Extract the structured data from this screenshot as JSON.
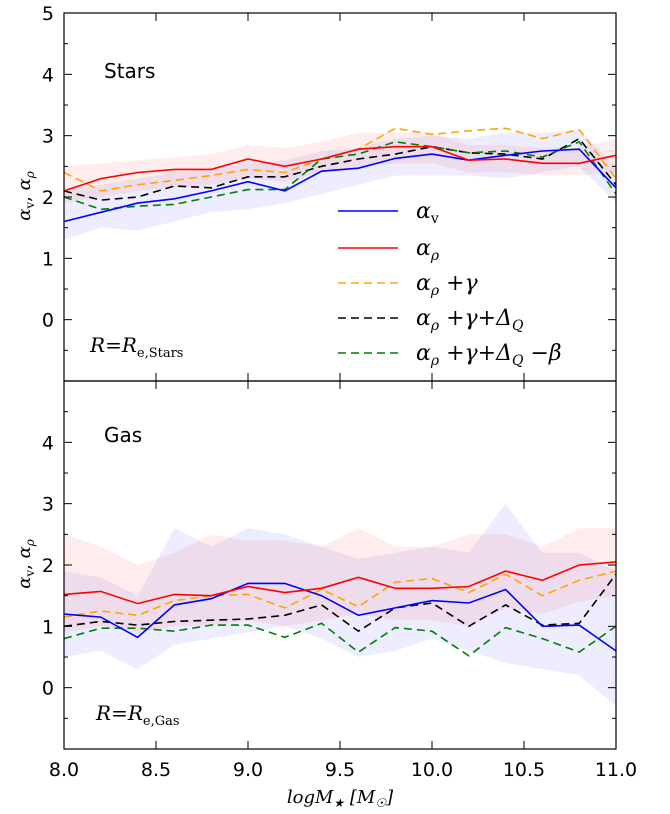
{
  "figure": {
    "xlabel": "logM★ [M☉]",
    "ylabel": "αv, αρ"
  },
  "chart_data": [
    {
      "type": "line",
      "panel": "top",
      "title": "Stars",
      "annotation": "R=Re,Stars",
      "xlabel": "logM★ [M☉]",
      "ylabel": "αv, αρ",
      "xlim": [
        8.0,
        11.0
      ],
      "ylim": [
        -1,
        5
      ],
      "x_ticks": [
        "8.0",
        "8.5",
        "9.0",
        "9.5",
        "10.0",
        "10.5",
        "11.0"
      ],
      "y_ticks": [
        "0",
        "1",
        "2",
        "3",
        "4",
        "5"
      ],
      "x": [
        8.0,
        8.2,
        8.4,
        8.6,
        8.8,
        9.0,
        9.2,
        9.4,
        9.6,
        9.8,
        10.0,
        10.2,
        10.4,
        10.6,
        10.8,
        11.0
      ],
      "series": [
        {
          "name": "αv",
          "color": "#0000ff",
          "dash": "solid",
          "values": [
            1.6,
            1.75,
            1.9,
            1.97,
            2.1,
            2.25,
            2.1,
            2.42,
            2.47,
            2.63,
            2.7,
            2.6,
            2.68,
            2.75,
            2.78,
            2.15
          ]
        },
        {
          "name": "αρ",
          "color": "#ff0000",
          "dash": "solid",
          "values": [
            2.1,
            2.3,
            2.4,
            2.45,
            2.45,
            2.62,
            2.5,
            2.62,
            2.78,
            2.82,
            2.82,
            2.6,
            2.62,
            2.55,
            2.55,
            2.68
          ]
        },
        {
          "name": "αρ +γ",
          "color": "#ffa500",
          "dash": "dashed",
          "values": [
            2.4,
            2.1,
            2.2,
            2.27,
            2.35,
            2.45,
            2.4,
            2.62,
            2.78,
            3.12,
            3.02,
            3.08,
            3.12,
            2.95,
            3.1,
            2.3
          ]
        },
        {
          "name": "αρ +γ+ΔQ",
          "color": "#000000",
          "dash": "dashed",
          "values": [
            2.1,
            1.95,
            2.0,
            2.18,
            2.15,
            2.33,
            2.33,
            2.5,
            2.62,
            2.7,
            2.82,
            2.72,
            2.7,
            2.62,
            2.95,
            2.2
          ]
        },
        {
          "name": "αρ +γ+ΔQ −β",
          "color": "#008000",
          "dash": "dashed",
          "values": [
            2.0,
            1.8,
            1.85,
            1.88,
            2.0,
            2.12,
            2.12,
            2.62,
            2.7,
            2.9,
            2.82,
            2.72,
            2.75,
            2.65,
            2.9,
            2.05
          ]
        }
      ],
      "bands": [
        {
          "series": "αv",
          "color": "#0000ff",
          "lower": [
            1.3,
            1.5,
            1.45,
            1.6,
            1.75,
            1.8,
            1.9,
            2.05,
            2.2,
            2.35,
            2.35,
            2.35,
            2.3,
            2.4,
            2.5,
            1.9
          ],
          "upper": [
            2.1,
            2.2,
            2.3,
            2.4,
            2.45,
            2.55,
            2.6,
            2.75,
            2.8,
            2.95,
            3.0,
            2.95,
            3.05,
            3.05,
            3.1,
            2.5
          ]
        },
        {
          "series": "αρ",
          "color": "#ff0000",
          "lower": [
            1.9,
            2.0,
            2.1,
            2.15,
            2.2,
            2.3,
            2.25,
            2.4,
            2.5,
            2.55,
            2.55,
            2.4,
            2.4,
            2.35,
            2.35,
            2.4
          ],
          "upper": [
            2.5,
            2.55,
            2.6,
            2.65,
            2.7,
            2.85,
            2.8,
            2.9,
            3.05,
            3.05,
            3.05,
            2.85,
            2.85,
            2.8,
            2.8,
            2.95
          ]
        }
      ],
      "legend": {
        "placement": "center-right",
        "entries": [
          "αv",
          "αρ",
          "αρ +γ",
          "αρ +γ+ΔQ",
          "αρ +γ+ΔQ −β"
        ]
      }
    },
    {
      "type": "line",
      "panel": "bottom",
      "title": "Gas",
      "annotation": "R=Re,Gas",
      "xlabel": "logM★ [M☉]",
      "ylabel": "αv, αρ",
      "xlim": [
        8.0,
        11.0
      ],
      "ylim": [
        -1,
        5
      ],
      "x_ticks": [
        "8.0",
        "8.5",
        "9.0",
        "9.5",
        "10.0",
        "10.5",
        "11.0"
      ],
      "y_ticks": [
        "0",
        "1",
        "2",
        "3",
        "4"
      ],
      "x": [
        8.0,
        8.2,
        8.4,
        8.6,
        8.8,
        9.0,
        9.2,
        9.4,
        9.6,
        9.8,
        10.0,
        10.2,
        10.4,
        10.6,
        10.8,
        11.0
      ],
      "series": [
        {
          "name": "αv",
          "color": "#0000ff",
          "dash": "solid",
          "values": [
            1.2,
            1.15,
            0.82,
            1.35,
            1.45,
            1.7,
            1.7,
            1.5,
            1.18,
            1.3,
            1.42,
            1.38,
            1.6,
            1.0,
            1.02,
            0.6
          ]
        },
        {
          "name": "αρ",
          "color": "#ff0000",
          "dash": "solid",
          "values": [
            1.52,
            1.57,
            1.37,
            1.52,
            1.5,
            1.65,
            1.55,
            1.62,
            1.8,
            1.62,
            1.62,
            1.65,
            1.9,
            1.75,
            2.0,
            2.05
          ]
        },
        {
          "name": "αρ +γ",
          "color": "#ffa500",
          "dash": "dashed",
          "values": [
            1.15,
            1.25,
            1.18,
            1.42,
            1.5,
            1.52,
            1.3,
            1.6,
            1.32,
            1.72,
            1.78,
            1.55,
            1.85,
            1.5,
            1.75,
            1.9
          ]
        },
        {
          "name": "αρ +γ+ΔQ",
          "color": "#000000",
          "dash": "dashed",
          "values": [
            1.0,
            1.08,
            1.02,
            1.08,
            1.1,
            1.12,
            1.18,
            1.35,
            0.92,
            1.3,
            1.38,
            1.0,
            1.35,
            1.02,
            1.05,
            1.85
          ]
        },
        {
          "name": "αρ +γ+ΔQ −β",
          "color": "#008000",
          "dash": "dashed",
          "values": [
            0.8,
            0.97,
            0.97,
            0.92,
            1.02,
            1.02,
            0.82,
            1.05,
            0.58,
            0.98,
            0.92,
            0.52,
            0.98,
            0.8,
            0.58,
            1.0
          ]
        }
      ],
      "bands": [
        {
          "series": "αv",
          "color": "#0000ff",
          "lower": [
            0.5,
            0.6,
            0.3,
            0.7,
            0.8,
            0.9,
            1.0,
            0.8,
            0.5,
            0.6,
            0.8,
            0.6,
            0.4,
            0.3,
            0.2,
            -0.3
          ],
          "upper": [
            1.9,
            1.8,
            1.5,
            2.6,
            2.3,
            2.6,
            2.5,
            2.3,
            2.1,
            2.2,
            2.3,
            2.2,
            3.0,
            2.2,
            2.2,
            1.9
          ]
        },
        {
          "series": "αρ",
          "color": "#ff0000",
          "lower": [
            0.9,
            1.0,
            0.9,
            1.0,
            1.0,
            1.1,
            1.0,
            1.1,
            1.2,
            1.1,
            1.1,
            1.0,
            1.3,
            1.2,
            1.4,
            1.5
          ]
        },
        {
          "series": "αρ-upper",
          "color": "#ff0000",
          "upper": [
            2.5,
            2.3,
            2.0,
            2.2,
            2.5,
            2.4,
            2.4,
            2.3,
            2.6,
            2.3,
            2.3,
            2.5,
            2.5,
            2.3,
            2.6,
            2.6
          ]
        }
      ]
    }
  ]
}
